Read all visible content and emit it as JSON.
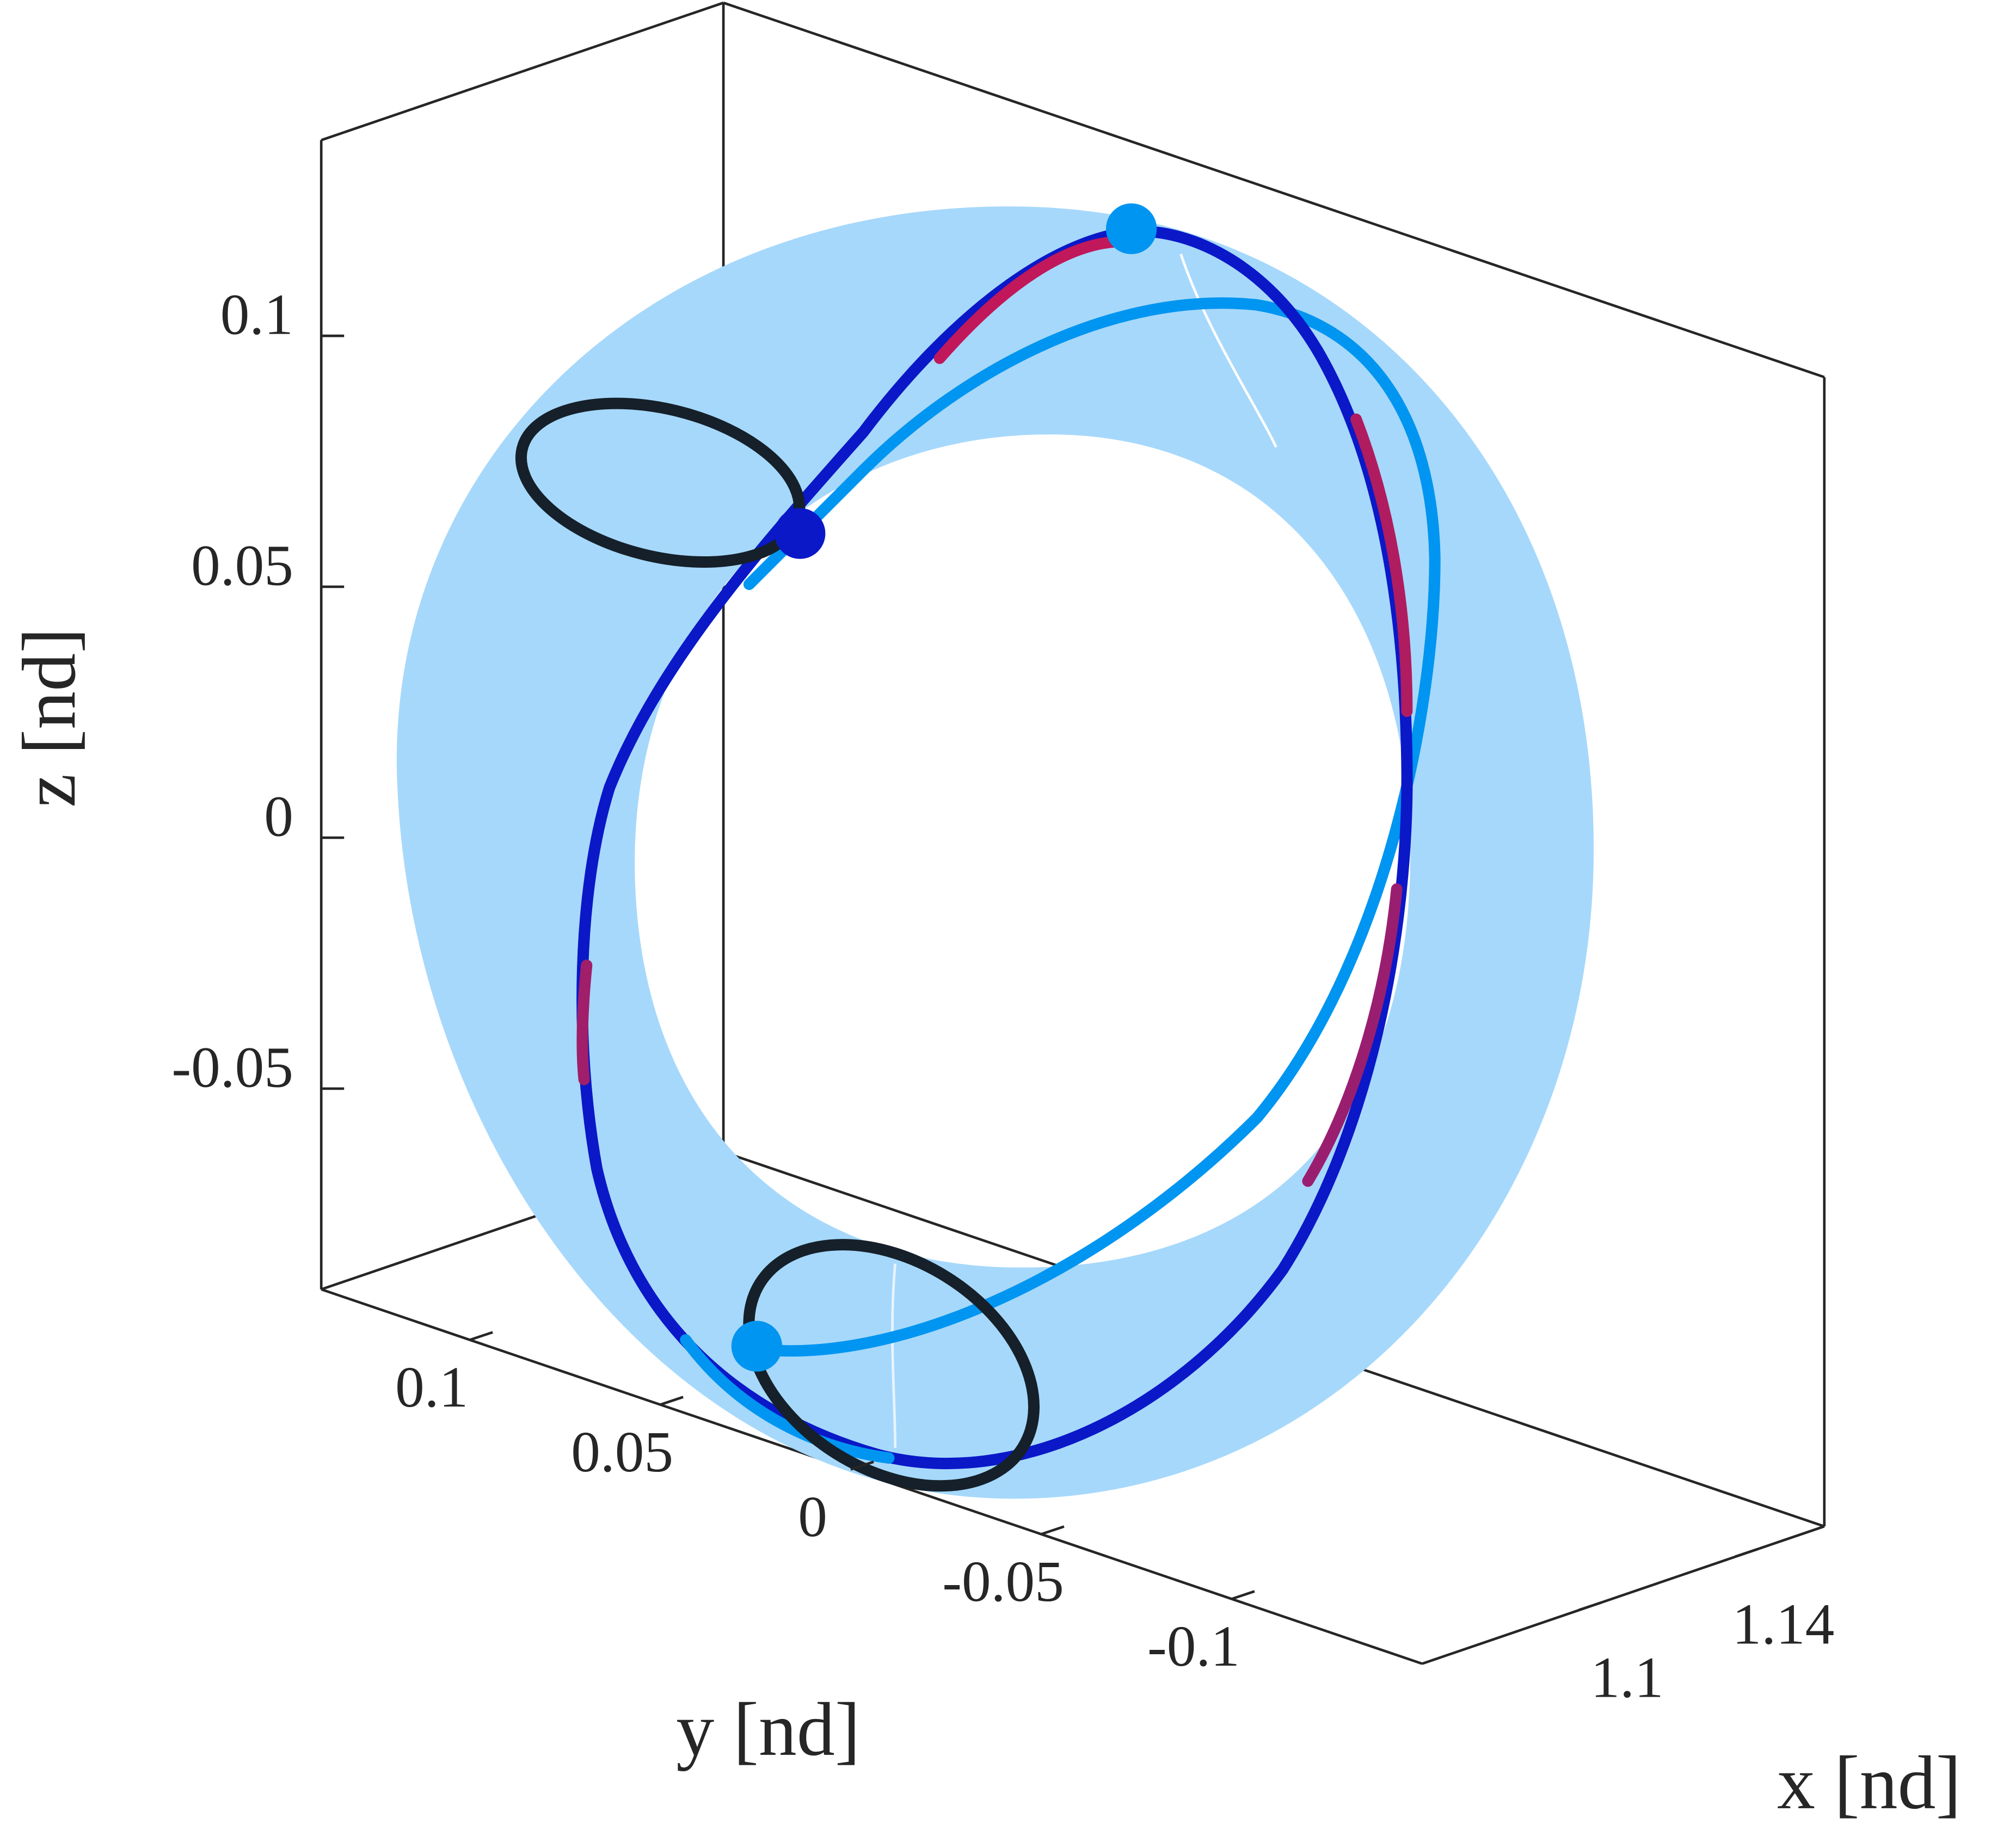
{
  "chart_data": {
    "type": "line3d",
    "xlabel": "x [nd]",
    "ylabel": "y [nd]",
    "zlabel": "z [nd]",
    "xlim": [
      1.054,
      1.157
    ],
    "xticks": [
      1.1,
      1.14
    ],
    "ylim": [
      -0.15,
      0.139
    ],
    "yticks": [
      -0.1,
      -0.05,
      0,
      0.05,
      0.1
    ],
    "zlim": [
      -0.09,
      0.139
    ],
    "zticks": [
      -0.05,
      0,
      0.05,
      0.1
    ],
    "box": true
  }
}
